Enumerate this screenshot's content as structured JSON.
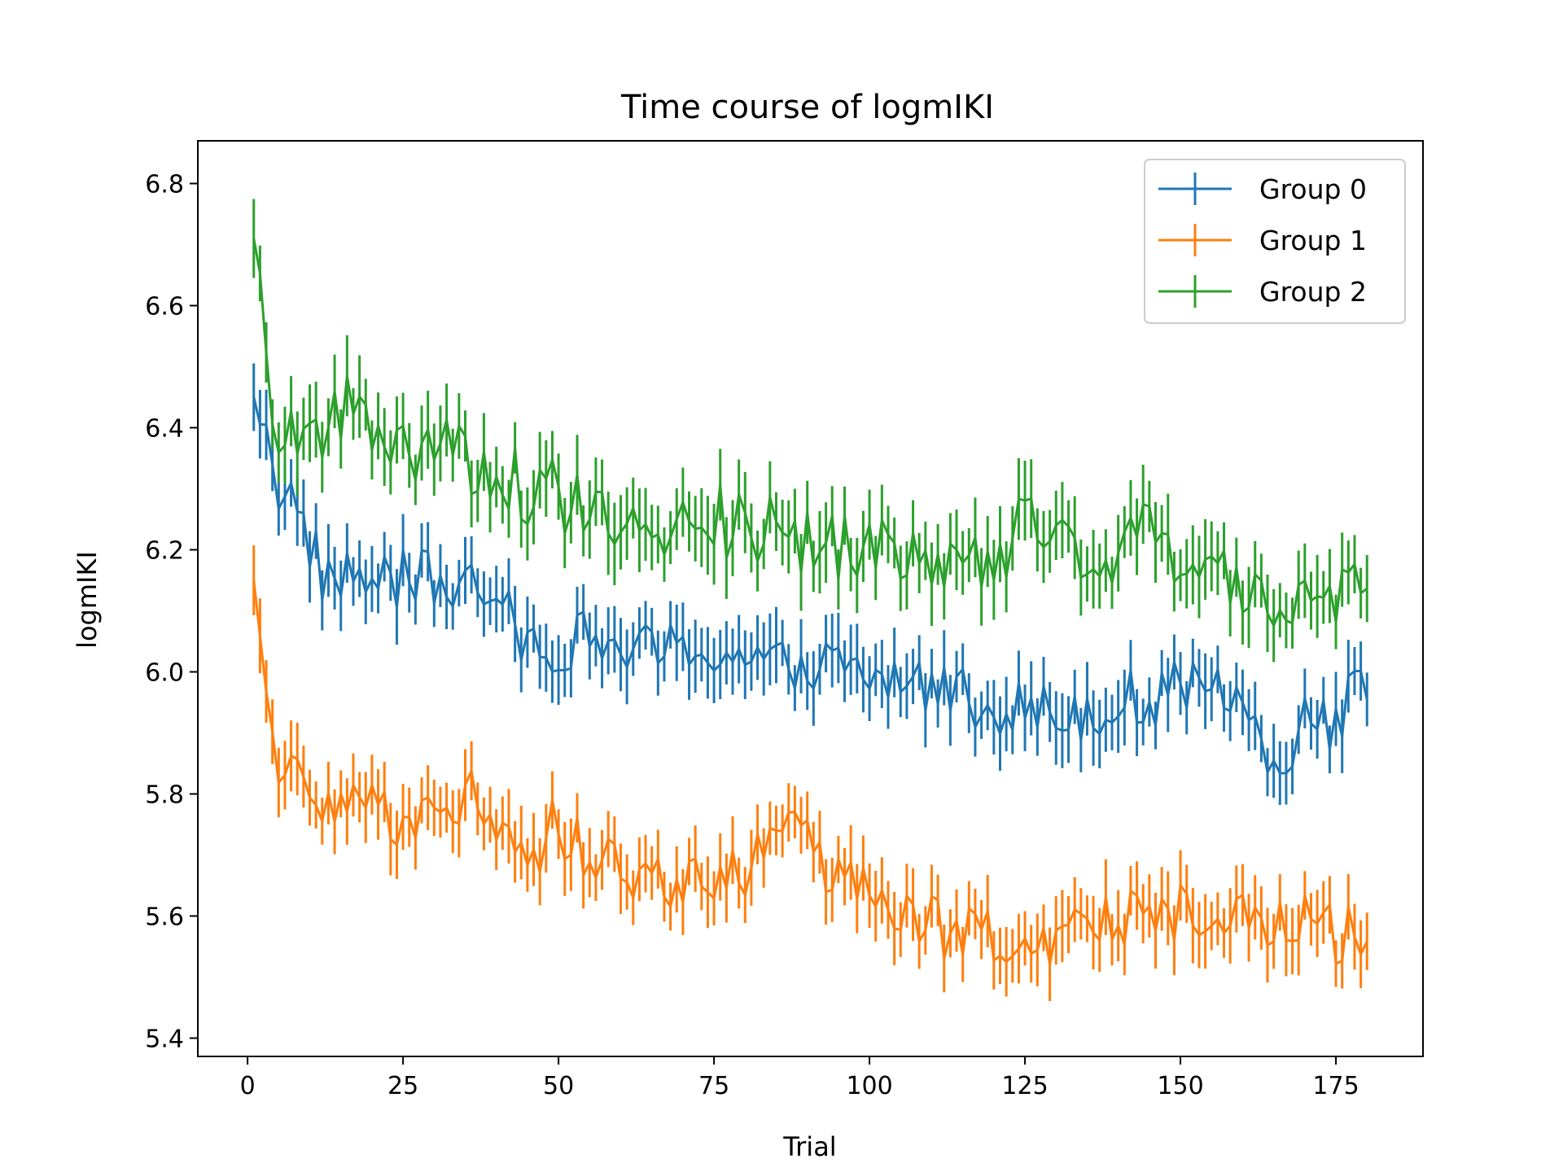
{
  "chart_data": {
    "type": "line",
    "title": "Time course of logmIKI",
    "xlabel": "Trial",
    "ylabel": "logmIKI",
    "xlim": [
      -8,
      189
    ],
    "ylim": [
      5.37,
      6.87
    ],
    "xticks": [
      0,
      25,
      50,
      75,
      100,
      125,
      150,
      175
    ],
    "yticks": [
      5.4,
      5.6,
      5.8,
      6.0,
      6.2,
      6.4,
      6.6,
      6.8
    ],
    "xtick_labels": [
      "0",
      "25",
      "50",
      "75",
      "100",
      "125",
      "150",
      "175"
    ],
    "ytick_labels": [
      "5.4",
      "5.6",
      "5.8",
      "6.0",
      "6.2",
      "6.4",
      "6.6",
      "6.8"
    ],
    "x_range": [
      1,
      180
    ],
    "legend": {
      "placement": "top-right",
      "entries": [
        "Group 0",
        "Group 1",
        "Group 2"
      ]
    },
    "error_bars": true,
    "series": [
      {
        "name": "Group 0",
        "color": "#1f77b4",
        "keypoints": [
          [
            1,
            6.45
          ],
          [
            3,
            6.42
          ],
          [
            5,
            6.3
          ],
          [
            8,
            6.27
          ],
          [
            12,
            6.16
          ],
          [
            20,
            6.15
          ],
          [
            30,
            6.15
          ],
          [
            38,
            6.13
          ],
          [
            45,
            6.05
          ],
          [
            55,
            6.05
          ],
          [
            65,
            6.03
          ],
          [
            75,
            6.04
          ],
          [
            85,
            6.0
          ],
          [
            90,
            6.02
          ],
          [
            100,
            5.99
          ],
          [
            110,
            5.98
          ],
          [
            120,
            5.95
          ],
          [
            130,
            5.93
          ],
          [
            140,
            5.95
          ],
          [
            150,
            5.97
          ],
          [
            160,
            5.95
          ],
          [
            166,
            5.85
          ],
          [
            170,
            5.93
          ],
          [
            175,
            5.92
          ],
          [
            180,
            5.99
          ]
        ],
        "noise_amp": 0.05,
        "error_halfwidth": 0.05
      },
      {
        "name": "Group 1",
        "color": "#ff7f0e",
        "keypoints": [
          [
            1,
            6.15
          ],
          [
            3,
            5.97
          ],
          [
            5,
            5.85
          ],
          [
            10,
            5.8
          ],
          [
            20,
            5.77
          ],
          [
            30,
            5.76
          ],
          [
            38,
            5.8
          ],
          [
            45,
            5.7
          ],
          [
            50,
            5.75
          ],
          [
            55,
            5.7
          ],
          [
            60,
            5.68
          ],
          [
            70,
            5.65
          ],
          [
            80,
            5.68
          ],
          [
            88,
            5.73
          ],
          [
            95,
            5.65
          ],
          [
            105,
            5.6
          ],
          [
            115,
            5.57
          ],
          [
            125,
            5.55
          ],
          [
            135,
            5.6
          ],
          [
            145,
            5.6
          ],
          [
            155,
            5.62
          ],
          [
            165,
            5.58
          ],
          [
            170,
            5.6
          ],
          [
            175,
            5.57
          ],
          [
            180,
            5.59
          ]
        ],
        "noise_amp": 0.05,
        "error_halfwidth": 0.05
      },
      {
        "name": "Group 2",
        "color": "#2ca02c",
        "keypoints": [
          [
            1,
            6.71
          ],
          [
            2,
            6.62
          ],
          [
            4,
            6.4
          ],
          [
            10,
            6.37
          ],
          [
            17,
            6.45
          ],
          [
            22,
            6.33
          ],
          [
            30,
            6.38
          ],
          [
            35,
            6.35
          ],
          [
            45,
            6.3
          ],
          [
            55,
            6.27
          ],
          [
            65,
            6.25
          ],
          [
            75,
            6.25
          ],
          [
            80,
            6.24
          ],
          [
            90,
            6.22
          ],
          [
            100,
            6.2
          ],
          [
            110,
            6.17
          ],
          [
            120,
            6.2
          ],
          [
            125,
            6.23
          ],
          [
            135,
            6.19
          ],
          [
            145,
            6.22
          ],
          [
            155,
            6.17
          ],
          [
            162,
            6.12
          ],
          [
            170,
            6.1
          ],
          [
            175,
            6.1
          ],
          [
            180,
            6.17
          ]
        ],
        "noise_amp": 0.06,
        "error_halfwidth": 0.055
      }
    ]
  }
}
